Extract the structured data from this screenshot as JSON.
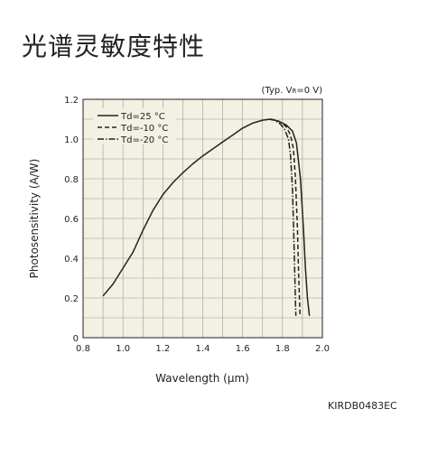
{
  "page_title": "光谱灵敏度特性",
  "figure_code": "KIRDB0483EC",
  "chart_data": {
    "type": "line",
    "condition": "(Typ. V",
    "condition_sub": "R",
    "condition_end": "=0 V)",
    "xlabel": "Wavelength (μm)",
    "ylabel": "Photosensitivity (A/W)",
    "xlim": [
      0.8,
      2.0
    ],
    "ylim": [
      0,
      1.2
    ],
    "xticks": [
      "0.8",
      "1.0",
      "1.2",
      "1.4",
      "1.6",
      "1.8",
      "2.0"
    ],
    "yticks": [
      "0",
      "0.2",
      "0.4",
      "0.6",
      "0.8",
      "1.0",
      "1.2"
    ],
    "grid": true,
    "background": "#f3f0e4",
    "legend_position": "top-left",
    "series": [
      {
        "name": "Td=25 °C",
        "style": "solid",
        "points": [
          [
            0.9,
            0.21
          ],
          [
            0.95,
            0.27
          ],
          [
            1.0,
            0.35
          ],
          [
            1.05,
            0.43
          ],
          [
            1.1,
            0.54
          ],
          [
            1.15,
            0.64
          ],
          [
            1.2,
            0.72
          ],
          [
            1.25,
            0.78
          ],
          [
            1.3,
            0.83
          ],
          [
            1.35,
            0.875
          ],
          [
            1.4,
            0.915
          ],
          [
            1.45,
            0.95
          ],
          [
            1.5,
            0.985
          ],
          [
            1.55,
            1.02
          ],
          [
            1.6,
            1.055
          ],
          [
            1.65,
            1.08
          ],
          [
            1.7,
            1.095
          ],
          [
            1.74,
            1.1
          ],
          [
            1.78,
            1.09
          ],
          [
            1.82,
            1.07
          ],
          [
            1.85,
            1.04
          ],
          [
            1.87,
            0.98
          ],
          [
            1.89,
            0.8
          ],
          [
            1.905,
            0.55
          ],
          [
            1.915,
            0.35
          ],
          [
            1.925,
            0.2
          ],
          [
            1.935,
            0.11
          ]
        ]
      },
      {
        "name": "Td=-10 °C",
        "style": "dashed",
        "points": [
          [
            1.74,
            1.1
          ],
          [
            1.77,
            1.095
          ],
          [
            1.8,
            1.08
          ],
          [
            1.82,
            1.06
          ],
          [
            1.84,
            1.02
          ],
          [
            1.855,
            0.95
          ],
          [
            1.865,
            0.8
          ],
          [
            1.875,
            0.55
          ],
          [
            1.88,
            0.35
          ],
          [
            1.885,
            0.2
          ],
          [
            1.888,
            0.11
          ]
        ]
      },
      {
        "name": "Td=-20 °C",
        "style": "dashdot",
        "points": [
          [
            1.73,
            1.1
          ],
          [
            1.76,
            1.095
          ],
          [
            1.79,
            1.075
          ],
          [
            1.81,
            1.05
          ],
          [
            1.83,
            1.0
          ],
          [
            1.84,
            0.92
          ],
          [
            1.85,
            0.75
          ],
          [
            1.857,
            0.5
          ],
          [
            1.862,
            0.3
          ],
          [
            1.865,
            0.18
          ],
          [
            1.867,
            0.11
          ]
        ]
      }
    ]
  }
}
